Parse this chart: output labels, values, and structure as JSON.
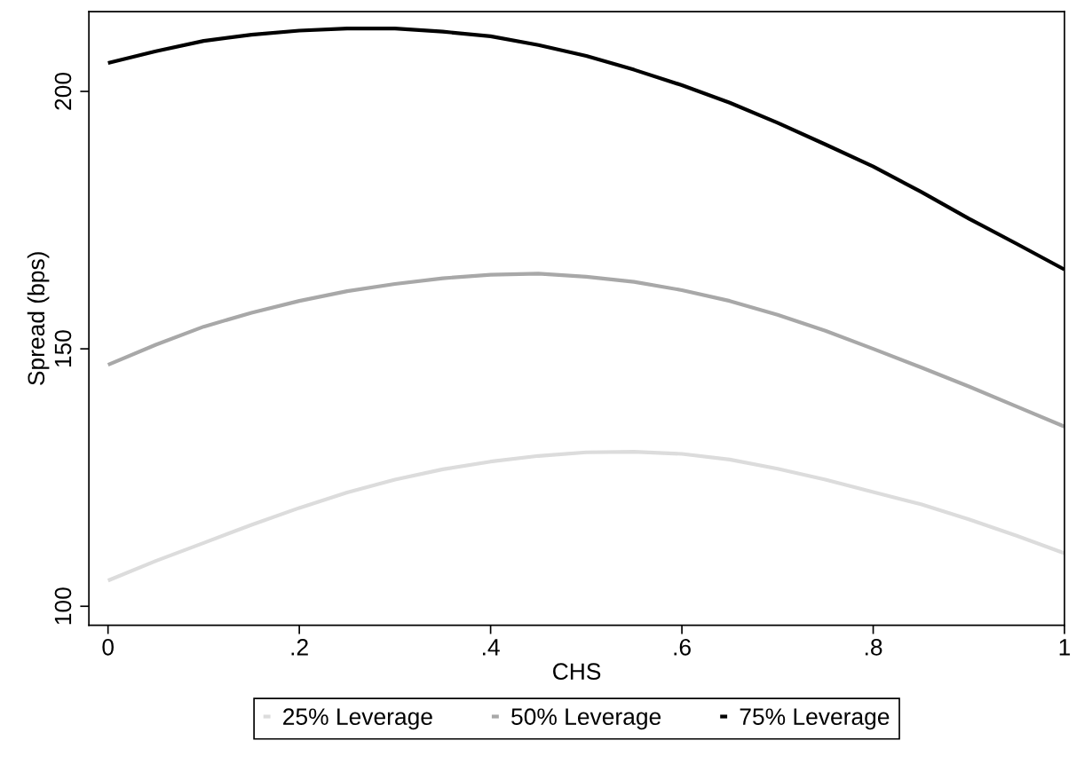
{
  "chart_data": {
    "type": "line",
    "xlabel": "CHS",
    "ylabel": "Spread (bps)",
    "xlim": [
      -0.02,
      1.0
    ],
    "xticks": [
      {
        "value": 0,
        "label": "0"
      },
      {
        "value": 0.2,
        "label": ".2"
      },
      {
        "value": 0.4,
        "label": ".4"
      },
      {
        "value": 0.6,
        "label": ".6"
      },
      {
        "value": 0.8,
        "label": ".8"
      },
      {
        "value": 1,
        "label": "1"
      }
    ],
    "ylim": [
      96.3,
      215.5
    ],
    "yticks": [
      100,
      150,
      200
    ],
    "grid": false,
    "legend": "bottom",
    "marker": "none",
    "line_style": "solid",
    "series": [
      {
        "name": "25% Leverage",
        "color": "#dcdcdc",
        "x": [
          0,
          0.05,
          0.1,
          0.15,
          0.2,
          0.25,
          0.3,
          0.35,
          0.4,
          0.45,
          0.5,
          0.55,
          0.6,
          0.65,
          0.7,
          0.75,
          0.8,
          0.85,
          0.9,
          0.95,
          1.0
        ],
        "values": [
          105.0,
          108.8,
          112.3,
          115.8,
          119.1,
          122.1,
          124.6,
          126.6,
          128.1,
          129.2,
          129.9,
          130.0,
          129.6,
          128.5,
          126.7,
          124.6,
          122.2,
          119.8,
          116.9,
          113.7,
          110.3
        ]
      },
      {
        "name": "50% Leverage",
        "color": "#a8a8a8",
        "x": [
          0,
          0.05,
          0.1,
          0.15,
          0.2,
          0.25,
          0.3,
          0.35,
          0.4,
          0.45,
          0.5,
          0.55,
          0.6,
          0.65,
          0.7,
          0.75,
          0.8,
          0.85,
          0.9,
          0.95,
          1.0
        ],
        "values": [
          146.9,
          150.8,
          154.3,
          157.0,
          159.3,
          161.2,
          162.6,
          163.7,
          164.4,
          164.6,
          164.0,
          163.0,
          161.4,
          159.3,
          156.6,
          153.5,
          150.0,
          146.4,
          142.7,
          138.8,
          134.9
        ]
      },
      {
        "name": "75% Leverage",
        "color": "#000000",
        "x": [
          0,
          0.05,
          0.1,
          0.15,
          0.2,
          0.25,
          0.3,
          0.35,
          0.4,
          0.45,
          0.5,
          0.55,
          0.6,
          0.65,
          0.7,
          0.75,
          0.8,
          0.85,
          0.9,
          0.95,
          1.0
        ],
        "values": [
          205.5,
          207.8,
          209.8,
          211.0,
          211.8,
          212.2,
          212.2,
          211.6,
          210.7,
          209.0,
          206.9,
          204.2,
          201.2,
          197.8,
          193.9,
          189.7,
          185.4,
          180.5,
          175.3,
          170.4,
          165.4
        ]
      }
    ]
  }
}
